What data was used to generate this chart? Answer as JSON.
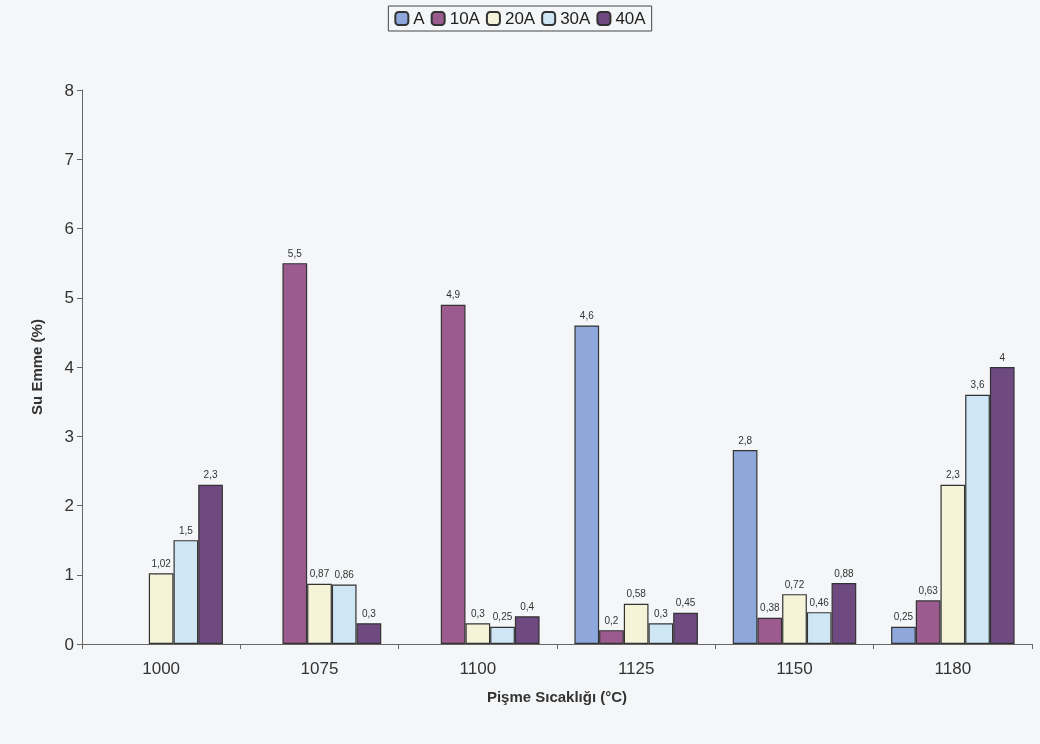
{
  "chart_data": {
    "type": "bar",
    "xlabel": "Pişme Sıcaklığı (°C)",
    "ylabel": "Su Emme (%)",
    "categories": [
      "1000",
      "1075",
      "1100",
      "1125",
      "1150",
      "1180"
    ],
    "series": [
      {
        "name": "A",
        "color": "#8fa8dc",
        "values": [
          null,
          null,
          null,
          4.6,
          2.8,
          0.25
        ],
        "value_labels": [
          null,
          null,
          null,
          "4,6",
          "2,8",
          "0,25"
        ]
      },
      {
        "name": "10A",
        "color": "#9b5b8e",
        "values": [
          null,
          5.5,
          4.9,
          0.2,
          0.38,
          0.63
        ],
        "value_labels": [
          null,
          "5,5",
          "4,9",
          "0,2",
          "0,38",
          "0,63"
        ]
      },
      {
        "name": "20A",
        "color": "#f5f3d8",
        "values": [
          1.02,
          0.87,
          0.3,
          0.58,
          0.72,
          2.3
        ],
        "value_labels": [
          "1,02",
          "0,87",
          "0,3",
          "0,58",
          "0,72",
          "2,3"
        ]
      },
      {
        "name": "30A",
        "color": "#cfe6f5",
        "values": [
          1.5,
          0.86,
          0.25,
          0.3,
          0.46,
          3.6
        ],
        "value_labels": [
          "1,5",
          "0,86",
          "0,25",
          "0,3",
          "0,46",
          "3,6"
        ]
      },
      {
        "name": "40A",
        "color": "#6f4a80",
        "values": [
          2.3,
          0.3,
          0.4,
          0.45,
          0.88,
          4
        ],
        "value_labels": [
          "2,3",
          "0,3",
          "0,4",
          "0,45",
          "0,88",
          "4"
        ]
      }
    ],
    "ylim": [
      0,
      8
    ],
    "yticks": [
      0,
      1,
      2,
      3,
      4,
      5,
      6,
      7,
      8
    ],
    "grid": false,
    "legend": "top"
  }
}
